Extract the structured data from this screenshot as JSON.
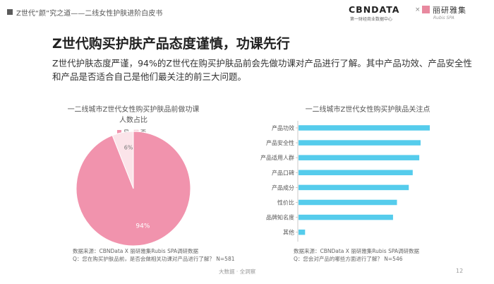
{
  "header": {
    "title": "Z世代“颜”究之道——二线女性护肤进阶白皮书"
  },
  "logo": {
    "left": "CBNDATA",
    "left_sub": "第一财经商业数据中心",
    "x": "×",
    "brand": "丽研雅集",
    "brand_sub": "Rubis SPA"
  },
  "title": "Z世代购买护肤产品态度谨慎，功课先行",
  "description": "Z世代护肤态度严谨，94%的Z世代在购买护肤品前会先做功课对产品进行了解。其中产品功效、产品安全性和产品是否适合自己是他们最关注的前三大问题。",
  "colors": {
    "pink": "#f193ad",
    "pink_light": "#fbe4e9",
    "blue": "#55ccec"
  },
  "chart_data": [
    {
      "type": "pie",
      "title": "一二线城市Z世代女性购买护肤品前做功课人数占比",
      "title_lines": [
        "一二线城市Z世代女性购买护肤品前做功课",
        "人数占比"
      ],
      "legend": [
        "是",
        "否"
      ],
      "slices": [
        {
          "label": "是",
          "value": 94,
          "display": "94%"
        },
        {
          "label": "否",
          "value": 6,
          "display": "6%"
        }
      ],
      "source_lines": [
        "数据来源：CBNData X 丽研雅集Rubis SPA调研数据",
        "Q：您在购买护肤品前，是否会做相关功课对产品进行了解？ N=581"
      ]
    },
    {
      "type": "bar",
      "orientation": "horizontal",
      "title": "一二线城市Z世代女性购买护肤品关注点",
      "categories": [
        "产品功效",
        "产品安全性",
        "产品适用人群",
        "产品口碑",
        "产品成分",
        "性价比",
        "品牌知名度",
        "其他"
      ],
      "values": [
        100,
        93,
        92,
        87,
        84,
        75,
        72,
        5
      ],
      "xlim": [
        0,
        100
      ],
      "source_lines": [
        "数据来源：CBNData X 丽研雅集Rubis SPA调研数据",
        "Q：您会对产品的哪些方面进行了解？ N=546"
      ]
    }
  ],
  "footer": "大数据 · 全洞察",
  "page_number": "12"
}
